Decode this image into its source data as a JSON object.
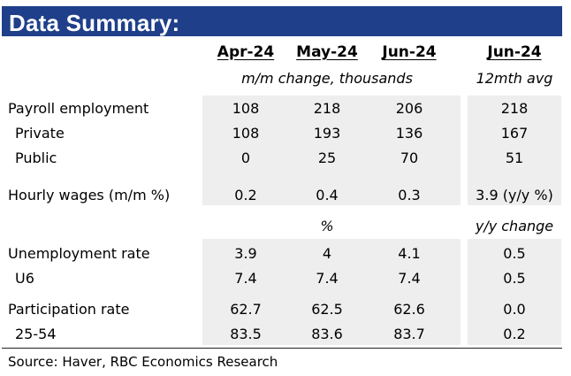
{
  "title": "Data Summary:",
  "headers": {
    "col1": "Apr-24",
    "col2": "May-24",
    "col3": "Jun-24",
    "col4": "Jun-24"
  },
  "subheaders": {
    "change": "m/m change, thousands",
    "avg": "12mth avg",
    "pct": "%",
    "yy": "y/y change"
  },
  "rows": [
    {
      "label": "Payroll employment",
      "v1": "108",
      "v2": "218",
      "v3": "206",
      "v4": "218"
    },
    {
      "label": "Private",
      "v1": "108",
      "v2": "193",
      "v3": "136",
      "v4": "167"
    },
    {
      "label": "Public",
      "v1": "0",
      "v2": "25",
      "v3": "70",
      "v4": "51"
    },
    {
      "label": "Hourly wages (m/m %)",
      "v1": "0.2",
      "v2": "0.4",
      "v3": "0.3",
      "v4": "3.9 (y/y %)"
    },
    {
      "label": "Unemployment rate",
      "v1": "3.9",
      "v2": "4",
      "v3": "4.1",
      "v4": "0.5"
    },
    {
      "label": "U6",
      "v1": "7.4",
      "v2": "7.4",
      "v3": "7.4",
      "v4": "0.5"
    },
    {
      "label": "Participation rate",
      "v1": "62.7",
      "v2": "62.5",
      "v3": "62.6",
      "v4": "0.0"
    },
    {
      "label": "25-54",
      "v1": "83.5",
      "v2": "83.6",
      "v3": "83.7",
      "v4": "0.2"
    }
  ],
  "source": "Source:  Haver, RBC Economics Research"
}
